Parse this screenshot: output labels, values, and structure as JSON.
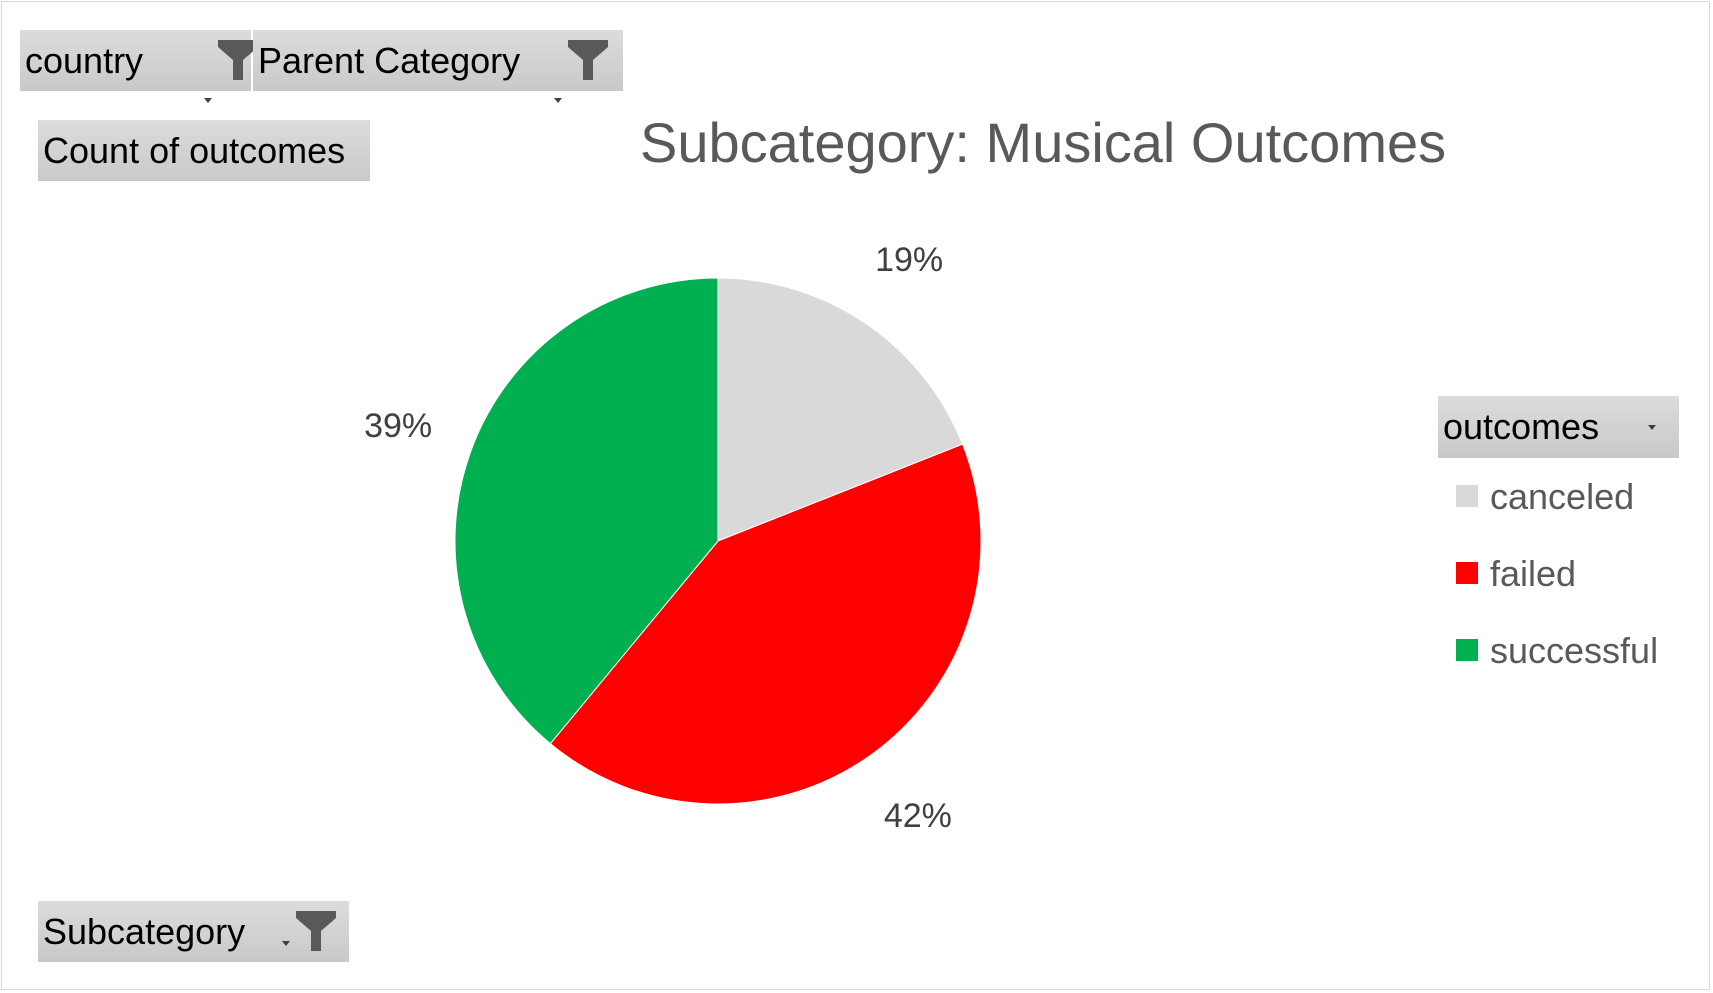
{
  "filters": {
    "country": "country",
    "parent_category": "Parent Category",
    "subcategory": "Subcategory"
  },
  "values_field": "Count of outcomes",
  "legend_field": "outcomes",
  "chart_data": {
    "type": "pie",
    "title": "Subcategory: Musical Outcomes",
    "categories": [
      "canceled",
      "failed",
      "successful"
    ],
    "values": [
      19,
      42,
      39
    ],
    "labels": [
      "19%",
      "42%",
      "39%"
    ],
    "colors": [
      "#d9d9d9",
      "#ff0000",
      "#00b050"
    ],
    "legend_position": "right"
  }
}
